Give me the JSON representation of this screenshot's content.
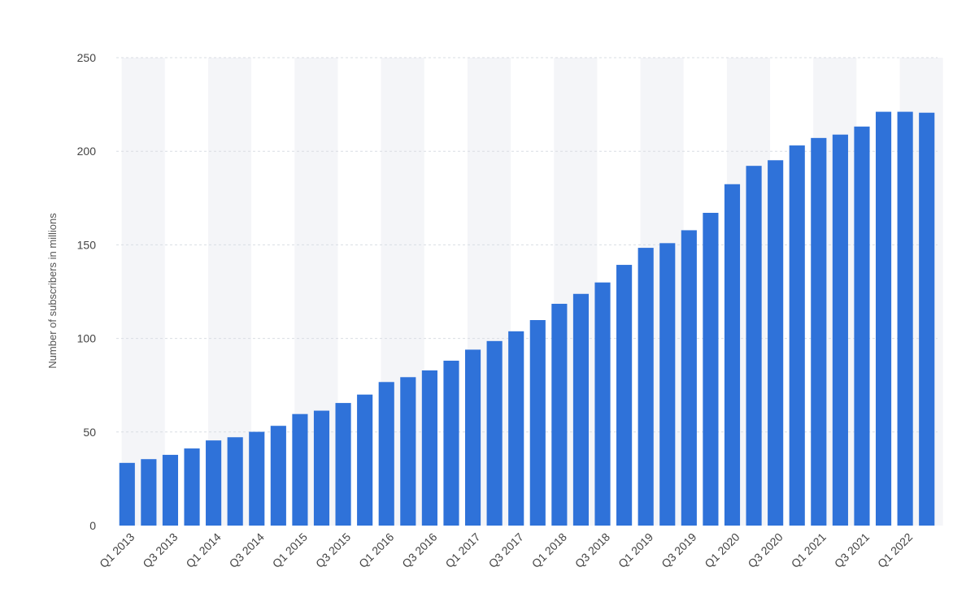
{
  "chart_data": {
    "type": "bar",
    "title": "",
    "xlabel": "",
    "ylabel": "Number of subscribers in millions",
    "ylim": [
      0,
      250
    ],
    "yticks": [
      0,
      50,
      100,
      150,
      200,
      250
    ],
    "grid": true,
    "legend": "none",
    "bar_color": "#2f72d9",
    "band_color": "#f4f5f8",
    "grid_color": "#d9dde3",
    "categories": [
      "Q1 2013",
      "Q2 2013",
      "Q3 2013",
      "Q4 2013",
      "Q1 2014",
      "Q2 2014",
      "Q3 2014",
      "Q4 2014",
      "Q1 2015",
      "Q2 2015",
      "Q3 2015",
      "Q4 2015",
      "Q1 2016",
      "Q2 2016",
      "Q3 2016",
      "Q4 2016",
      "Q1 2017",
      "Q2 2017",
      "Q3 2017",
      "Q4 2017",
      "Q1 2018",
      "Q2 2018",
      "Q3 2018",
      "Q4 2018",
      "Q1 2019",
      "Q2 2019",
      "Q3 2019",
      "Q4 2019",
      "Q1 2020",
      "Q2 2020",
      "Q3 2020",
      "Q4 2020",
      "Q1 2021",
      "Q2 2021",
      "Q3 2021",
      "Q4 2021",
      "Q1 2022",
      "Q2 2022"
    ],
    "tick_labels": [
      "Q1 2013",
      "",
      "Q3 2013",
      "",
      "Q1 2014",
      "",
      "Q3 2014",
      "",
      "Q1 2015",
      "",
      "Q3 2015",
      "",
      "Q1 2016",
      "",
      "Q3 2016",
      "",
      "Q1 2017",
      "",
      "Q3 2017",
      "",
      "Q1 2018",
      "",
      "Q3 2018",
      "",
      "Q1 2019",
      "",
      "Q3 2019",
      "",
      "Q1 2020",
      "",
      "Q3 2020",
      "",
      "Q1 2021",
      "",
      "Q3 2021",
      "",
      "Q1 2022",
      ""
    ],
    "values": [
      33.5,
      35.5,
      37.8,
      41.2,
      45.5,
      47.2,
      50.1,
      53.3,
      59.6,
      61.4,
      65.5,
      70.0,
      76.7,
      79.3,
      82.9,
      88.1,
      94.0,
      98.6,
      103.8,
      109.8,
      118.5,
      123.8,
      129.9,
      139.3,
      148.4,
      150.9,
      157.8,
      167.1,
      182.4,
      192.2,
      195.2,
      203.1,
      207.1,
      208.9,
      213.2,
      221.1,
      221.1,
      220.6
    ]
  }
}
